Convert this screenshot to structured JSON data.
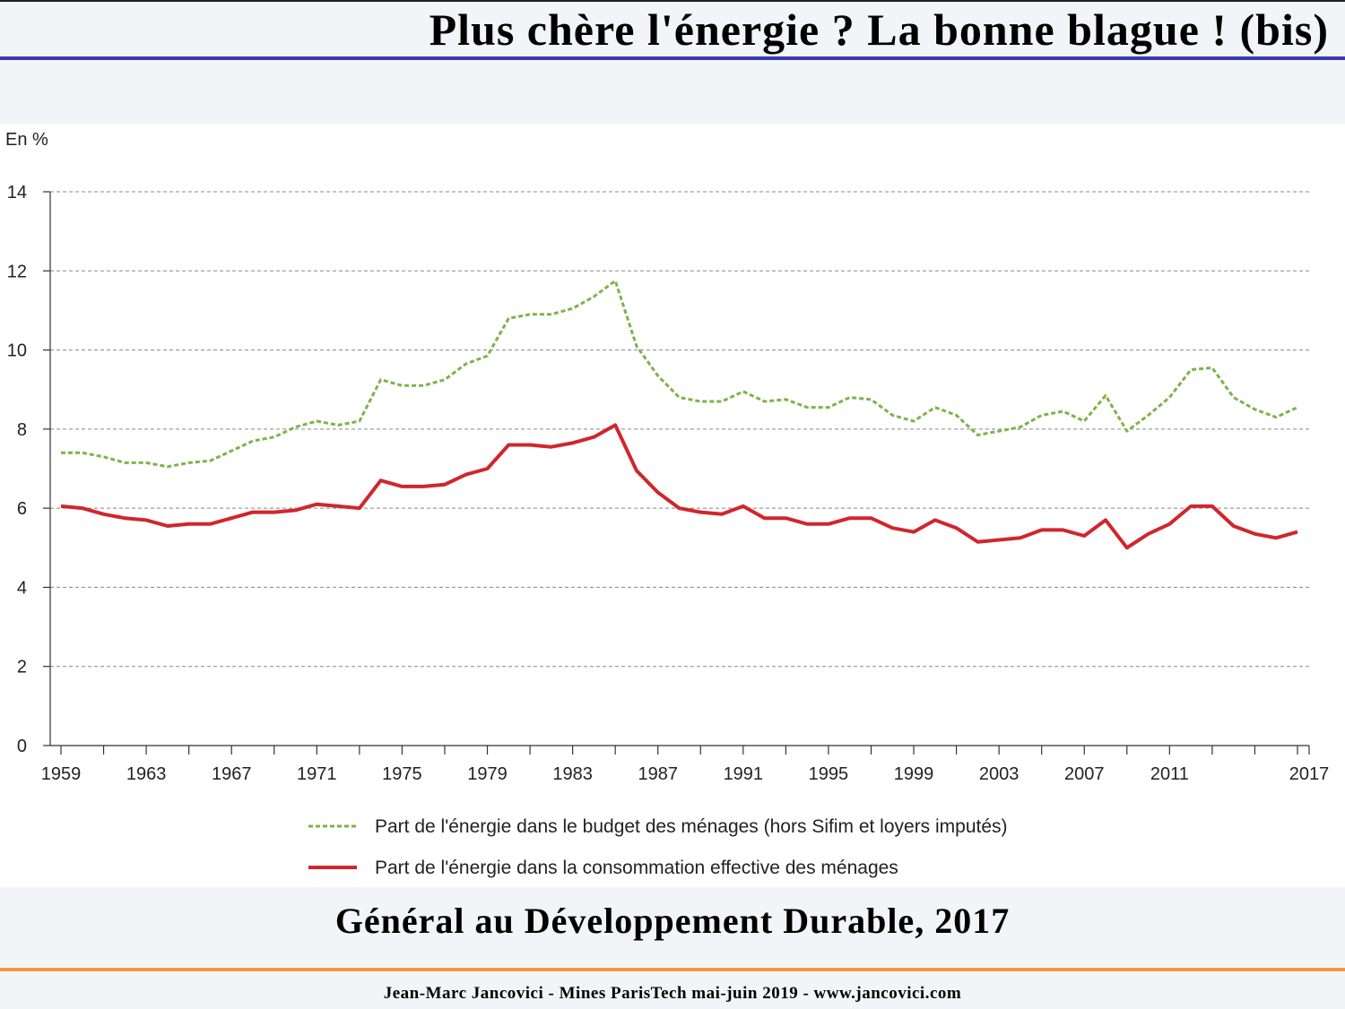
{
  "slide": {
    "title": "Plus chère l'énergie ? La bonne blague ! (bis)",
    "source": "Général au Développement Durable, 2017",
    "footer": "Jean-Marc Jancovici - Mines ParisTech mai-juin 2019 - www.jancovici.com"
  },
  "chart_data": {
    "type": "line",
    "unit_label": "En %",
    "ylim": [
      0,
      14
    ],
    "yticks": [
      0,
      2,
      4,
      6,
      8,
      10,
      12,
      14
    ],
    "xlim": [
      1959,
      2017
    ],
    "xtick_labels": [
      1959,
      1963,
      1967,
      1971,
      1975,
      1979,
      1983,
      1987,
      1991,
      1995,
      1999,
      2003,
      2007,
      2011,
      2017
    ],
    "grid": true,
    "legend_position": "bottom",
    "x": [
      1959,
      1960,
      1961,
      1962,
      1963,
      1964,
      1965,
      1966,
      1967,
      1968,
      1969,
      1970,
      1971,
      1972,
      1973,
      1974,
      1975,
      1976,
      1977,
      1978,
      1979,
      1980,
      1981,
      1982,
      1983,
      1984,
      1985,
      1986,
      1987,
      1988,
      1989,
      1990,
      1991,
      1992,
      1993,
      1994,
      1995,
      1996,
      1997,
      1998,
      1999,
      2000,
      2001,
      2002,
      2003,
      2004,
      2005,
      2006,
      2007,
      2008,
      2009,
      2010,
      2011,
      2012,
      2013,
      2014,
      2015,
      2016,
      2017
    ],
    "series": [
      {
        "name": "Part de l'énergie dans le budget des ménages (hors Sifim et loyers imputés)",
        "color": "#7fb24a",
        "style": "dashed",
        "values": [
          7.4,
          7.4,
          7.3,
          7.15,
          7.15,
          7.05,
          7.15,
          7.2,
          7.45,
          7.7,
          7.8,
          8.05,
          8.2,
          8.1,
          8.2,
          9.25,
          9.1,
          9.1,
          9.25,
          9.65,
          9.85,
          10.8,
          10.9,
          10.9,
          11.05,
          11.35,
          11.75,
          10.1,
          9.35,
          8.8,
          8.7,
          8.7,
          8.95,
          8.7,
          8.75,
          8.55,
          8.55,
          8.8,
          8.75,
          8.35,
          8.2,
          8.55,
          8.35,
          7.85,
          7.95,
          8.05,
          8.35,
          8.45,
          8.2,
          8.85,
          7.95,
          8.35,
          8.8,
          9.5,
          9.55,
          8.8,
          8.5,
          8.3,
          8.55
        ]
      },
      {
        "name": "Part de l'énergie dans la consommation effective des ménages",
        "color": "#d0262c",
        "style": "solid",
        "values": [
          6.05,
          6.0,
          5.85,
          5.75,
          5.7,
          5.55,
          5.6,
          5.6,
          5.75,
          5.9,
          5.9,
          5.95,
          6.1,
          6.05,
          6.0,
          6.7,
          6.55,
          6.55,
          6.6,
          6.85,
          7.0,
          7.6,
          7.6,
          7.55,
          7.65,
          7.8,
          8.1,
          6.95,
          6.4,
          6.0,
          5.9,
          5.85,
          6.05,
          5.75,
          5.75,
          5.6,
          5.6,
          5.75,
          5.75,
          5.5,
          5.4,
          5.7,
          5.5,
          5.15,
          5.2,
          5.25,
          5.45,
          5.45,
          5.3,
          5.7,
          5.0,
          5.35,
          5.6,
          6.05,
          6.05,
          5.55,
          5.35,
          5.25,
          5.4
        ]
      }
    ]
  }
}
